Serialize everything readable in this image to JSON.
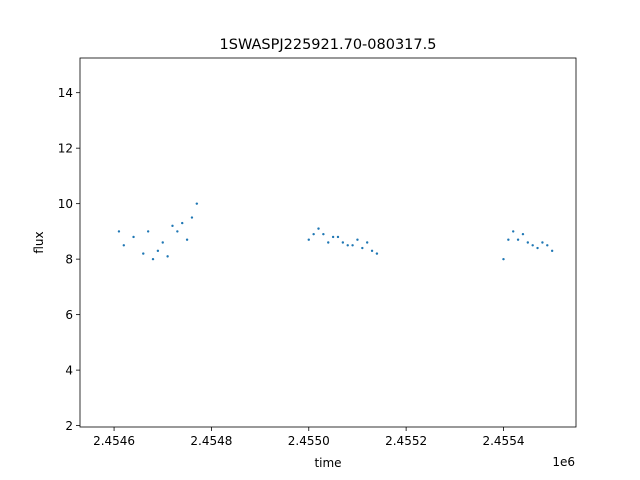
{
  "chart_data": {
    "type": "scatter",
    "title": "1SWASPJ225921.70-080317.5",
    "xlabel": "time",
    "ylabel": "flux",
    "x_offset_label": "1e6",
    "xlim": [
      2.45453,
      2.455549
    ],
    "ylim": [
      1.95,
      15.25
    ],
    "x_ticks": [
      2.4546,
      2.4548,
      2.455,
      2.4552,
      2.4554
    ],
    "x_tick_labels": [
      "2.4546",
      "2.4548",
      "2.4550",
      "2.4552",
      "2.4554"
    ],
    "y_ticks": [
      2,
      4,
      6,
      8,
      10,
      12,
      14
    ],
    "y_tick_labels": [
      "2",
      "4",
      "6",
      "8",
      "10",
      "12",
      "14"
    ],
    "grid": false,
    "legend": "none",
    "marker_color": "#1f77b4",
    "series": [
      {
        "points_note_x_units": "millions",
        "x": [
          2.45461,
          2.45462,
          2.45464,
          2.45466,
          2.45467,
          2.45468,
          2.45469,
          2.4547,
          2.45471,
          2.45472,
          2.45473,
          2.45474,
          2.45475,
          2.45476,
          2.45477,
          2.455,
          2.45501,
          2.45502,
          2.45503,
          2.45504,
          2.45505,
          2.45506,
          2.45507,
          2.45508,
          2.45509,
          2.4551,
          2.45511,
          2.45512,
          2.45513,
          2.45514,
          2.4554,
          2.45541,
          2.45542,
          2.45543,
          2.45544,
          2.45545,
          2.45546,
          2.45547,
          2.45548,
          2.45549,
          2.4555
        ],
        "y": [
          9.0,
          8.5,
          8.8,
          8.2,
          9.0,
          8.0,
          8.3,
          8.6,
          8.1,
          9.2,
          9.0,
          9.3,
          8.7,
          9.5,
          10.0,
          8.7,
          8.9,
          9.1,
          8.9,
          8.6,
          8.8,
          8.8,
          8.6,
          8.5,
          8.5,
          8.7,
          8.4,
          8.6,
          8.3,
          8.2,
          8.0,
          8.7,
          9.0,
          8.7,
          8.9,
          8.6,
          8.5,
          8.4,
          8.6,
          8.5,
          8.3
        ]
      }
    ]
  }
}
